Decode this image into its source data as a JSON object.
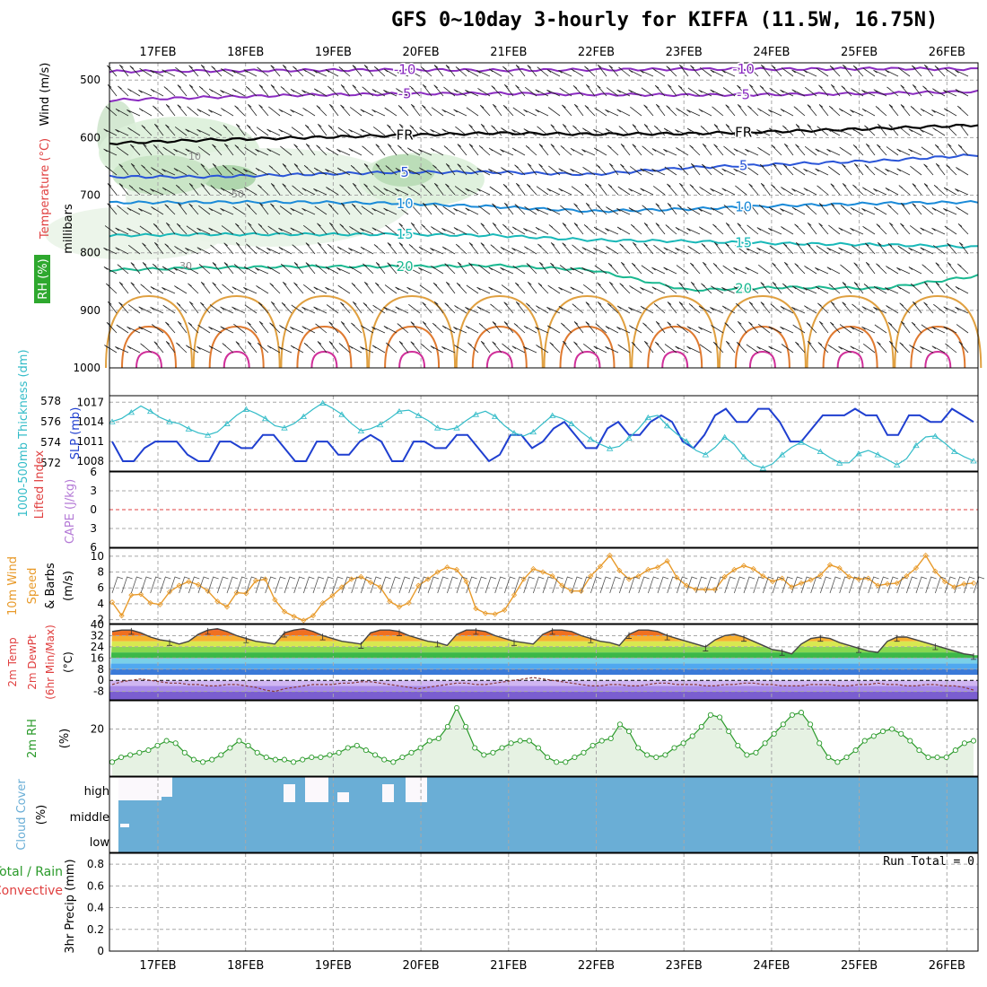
{
  "title": "GFS 0~10day 3-hourly for KIFFA (11.5W, 16.75N)",
  "date_labels": [
    "17FEB",
    "18FEB",
    "19FEB",
    "20FEB",
    "21FEB",
    "22FEB",
    "23FEB",
    "24FEB",
    "25FEB",
    "26FEB"
  ],
  "colors": {
    "grid": "#a8a8a8",
    "slp": "#1f3fd0",
    "thickness": "#33bcc8",
    "wind_speed": "#e89a2a",
    "rh": "#2a9a2a",
    "rh_fill": "#e6f2e3",
    "cloud": "#6aaed6",
    "lifted_index": "#e04040",
    "cape": "#b47ad6",
    "precip_total": "#2a9a2a",
    "precip_conv": "#e04040"
  },
  "chart_data": [
    {
      "panel": "upper_air",
      "type": "line",
      "ylabel": [
        "Wind (m/s)",
        "Temperature (°C)",
        "RH (%)",
        "millibars"
      ],
      "yticks": [
        500,
        600,
        700,
        800,
        900,
        1000
      ],
      "ylim": [
        470,
        1000
      ],
      "isotherms": [
        {
          "value": -10,
          "label": "-10",
          "p": [
            485,
            484,
            483,
            482,
            483,
            482,
            481,
            481,
            480,
            481
          ]
        },
        {
          "value": -5,
          "label": "-5",
          "p": [
            535,
            530,
            526,
            524,
            523,
            525,
            526,
            525,
            523,
            520
          ]
        },
        {
          "value": 0,
          "label": "FR",
          "p": [
            610,
            604,
            600,
            596,
            592,
            594,
            593,
            589,
            584,
            578
          ]
        },
        {
          "value": 5,
          "label": "5",
          "p": [
            668,
            668,
            664,
            660,
            660,
            664,
            652,
            646,
            640,
            630
          ]
        },
        {
          "value": 10,
          "label": "10",
          "p": [
            713,
            712,
            712,
            714,
            720,
            728,
            724,
            718,
            714,
            712
          ]
        },
        {
          "value": 15,
          "label": "15",
          "p": [
            770,
            768,
            768,
            768,
            770,
            778,
            780,
            784,
            786,
            790
          ]
        },
        {
          "value": 20,
          "label": "20",
          "p": [
            830,
            826,
            824,
            824,
            822,
            830,
            865,
            860,
            862,
            840
          ]
        }
      ],
      "contour_labels": [
        "10",
        "30",
        "50"
      ]
    },
    {
      "panel": "slp_thickness",
      "type": "line",
      "ylabel_left": "1000-500mb Thickness (dm)",
      "ylabel_right": "SLP (mb)",
      "yticks_left": [
        572,
        574,
        576,
        578
      ],
      "yticks_right": [
        1008,
        1011,
        1014,
        1017
      ],
      "ylim_left": [
        571.2,
        578.5
      ],
      "ylim_right": [
        1006.5,
        1018
      ],
      "series": [
        {
          "name": "SLP (mb)",
          "axis": "right",
          "values": [
            1011,
            1008,
            1008,
            1010,
            1011,
            1011,
            1011,
            1009,
            1008,
            1008,
            1011,
            1011,
            1010,
            1010,
            1012,
            1012,
            1010,
            1008,
            1008,
            1011,
            1011,
            1009,
            1009,
            1011,
            1012,
            1011,
            1008,
            1008,
            1011,
            1011,
            1010,
            1010,
            1012,
            1012,
            1010,
            1008,
            1009,
            1012,
            1012,
            1010,
            1011,
            1013,
            1014,
            1012,
            1010,
            1010,
            1013,
            1014,
            1012,
            1012,
            1014,
            1015,
            1014,
            1011,
            1010,
            1012,
            1015,
            1016,
            1014,
            1014,
            1016,
            1016,
            1014,
            1011,
            1011,
            1013,
            1015,
            1015,
            1015,
            1016,
            1015,
            1015,
            1012,
            1012,
            1015,
            1015,
            1014,
            1014,
            1016,
            1015,
            1014
          ]
        },
        {
          "name": "1000-500mb Thickness (dm)",
          "axis": "left",
          "values": [
            576,
            576.3,
            576.9,
            577.5,
            577,
            576.4,
            576,
            575.8,
            575.3,
            574.9,
            574.7,
            575,
            575.8,
            576.6,
            577.2,
            576.8,
            576.3,
            575.6,
            575.4,
            575.8,
            576.5,
            577.2,
            577.8,
            577.3,
            576.7,
            575.8,
            575.1,
            575.3,
            575.7,
            576.3,
            577,
            577.1,
            576.6,
            576.1,
            575.4,
            575.2,
            575.4,
            576.1,
            576.7,
            577,
            576.5,
            575.6,
            574.9,
            574.6,
            575,
            575.8,
            576.6,
            576.3,
            575.8,
            575,
            574.3,
            573.8,
            573.4,
            573.6,
            574.4,
            575.3,
            576.4,
            576.6,
            575.6,
            574.8,
            574.1,
            573.2,
            572.8,
            573.5,
            574.5,
            573.8,
            572.6,
            571.8,
            571.5,
            571.9,
            572.8,
            573.5,
            574,
            573.5,
            573.1,
            572.5,
            572,
            572,
            572.9,
            573.2,
            572.8,
            572.3,
            571.8,
            572.4,
            573.7,
            574.5,
            574.6,
            573.9,
            573.1,
            572.6,
            572.2
          ]
        }
      ]
    },
    {
      "panel": "instability",
      "type": "line",
      "ylabel": [
        "Lifted Index",
        "CAPE (J/kg)"
      ],
      "yticks": [
        -6,
        -3,
        0,
        3,
        6
      ],
      "ylim": [
        -6,
        6
      ],
      "series": [
        {
          "name": "Lifted Index",
          "values": []
        },
        {
          "name": "CAPE (J/kg)",
          "values": []
        }
      ]
    },
    {
      "panel": "wind10m",
      "type": "line",
      "ylabel": [
        "10m Wind",
        "Speed",
        "& Barbs",
        "(m/s)"
      ],
      "yticks": [
        2,
        4,
        6,
        8,
        10
      ],
      "ylim": [
        1.5,
        11
      ],
      "series": [
        {
          "name": "Speed",
          "values": [
            4.2,
            2.5,
            5.1,
            5.2,
            4.1,
            3.9,
            5.5,
            6.3,
            6.8,
            6.4,
            5.6,
            4.3,
            3.6,
            5.4,
            5.3,
            6.9,
            7.1,
            4.5,
            3.0,
            2.4,
            1.9,
            2.5,
            4.1,
            5.0,
            6.1,
            7.1,
            7.4,
            6.7,
            6.1,
            4.3,
            3.6,
            4.1,
            6.3,
            7.1,
            8.0,
            8.6,
            8.3,
            6.8,
            3.4,
            2.8,
            2.7,
            3.2,
            5.1,
            7.1,
            8.4,
            8.0,
            7.5,
            6.3,
            5.6,
            5.6,
            7.5,
            8.7,
            10.1,
            8.2,
            7.1,
            7.5,
            8.3,
            8.6,
            9.4,
            7.3,
            6.3,
            5.8,
            5.8,
            5.8,
            7.4,
            8.3,
            8.8,
            8.4,
            7.5,
            6.8,
            7.2,
            6.1,
            6.6,
            7.0,
            7.6,
            8.9,
            8.5,
            7.4,
            7.1,
            7.2,
            6.3,
            6.5,
            6.6,
            7.5,
            8.5,
            10.1,
            8.1,
            6.8,
            6.1,
            6.5,
            6.6
          ]
        }
      ]
    },
    {
      "panel": "temp2m",
      "type": "area",
      "ylabel": [
        "2m Temp",
        "2m DewPt",
        "(6hr Min/Max)",
        "(°C)"
      ],
      "yticks": [
        -8,
        0,
        8,
        16,
        24,
        32,
        40
      ],
      "ylim": [
        -14,
        40
      ],
      "series": [
        {
          "name": "2m Temp",
          "values": [
            35,
            36,
            36,
            34,
            31,
            29,
            28,
            26,
            28,
            33,
            36,
            37,
            35,
            32,
            30,
            28,
            27,
            26,
            34,
            36,
            37,
            35,
            32,
            30,
            28,
            27,
            26,
            34,
            36,
            36,
            35,
            32,
            30,
            28,
            27,
            25,
            33,
            36,
            36,
            35,
            32,
            30,
            28,
            27,
            26,
            33,
            36,
            36,
            35,
            32,
            30,
            28,
            27,
            25,
            33,
            36,
            36,
            35,
            32,
            30,
            28,
            26,
            24,
            29,
            32,
            33,
            31,
            28,
            25,
            22,
            21,
            19,
            26,
            30,
            31,
            30,
            27,
            25,
            23,
            21,
            20,
            28,
            31,
            31,
            29,
            27,
            25,
            23,
            21,
            19,
            18
          ]
        },
        {
          "name": "2m DewPt",
          "values": [
            -3,
            -1,
            0,
            1,
            0,
            -1,
            -2,
            -2,
            -3,
            -3,
            -4,
            -4,
            -3,
            -3,
            -4,
            -5,
            -7,
            -8,
            -6,
            -5,
            -4,
            -3,
            -3,
            -3,
            -2,
            -2,
            -1,
            -1,
            -2,
            -3,
            -4,
            -5,
            -6,
            -5,
            -4,
            -3,
            -2,
            -2,
            -3,
            -3,
            -2,
            -1,
            0,
            1,
            2,
            1,
            0,
            -1,
            -2,
            -3,
            -4,
            -4,
            -3,
            -3,
            -4,
            -4,
            -3,
            -2,
            -2,
            -3,
            -3,
            -3,
            -4,
            -4,
            -3,
            -3,
            -2,
            -2,
            -3,
            -3,
            -4,
            -4,
            -4,
            -3,
            -3,
            -3,
            -4,
            -4,
            -3,
            -3,
            -2,
            -3,
            -3,
            -4,
            -4,
            -3,
            -3,
            -4,
            -4,
            -5,
            -7
          ]
        }
      ]
    },
    {
      "panel": "rh2m",
      "type": "area",
      "ylabel": [
        "2m RH",
        "(%)"
      ],
      "yticks": [
        20
      ],
      "ylim": [
        0,
        32
      ],
      "series": [
        {
          "name": "2m RH",
          "values": [
            6,
            8,
            9,
            10,
            11,
            13,
            15,
            14,
            10,
            7,
            6,
            7,
            9,
            12,
            15,
            13,
            10,
            8,
            7,
            7,
            6,
            7,
            8,
            8,
            9,
            10,
            12,
            13,
            11,
            9,
            7,
            6,
            8,
            10,
            12,
            15,
            16,
            21,
            29,
            21,
            12,
            9,
            10,
            12,
            14,
            15,
            15,
            12,
            8,
            6,
            6,
            8,
            10,
            13,
            15,
            16,
            22,
            19,
            12,
            9,
            8,
            9,
            12,
            14,
            17,
            21,
            26,
            25,
            19,
            13,
            9,
            10,
            14,
            18,
            22,
            26,
            27,
            22,
            14,
            8,
            6,
            8,
            11,
            15,
            17,
            19,
            20,
            18,
            15,
            11,
            8,
            8,
            8,
            11,
            14,
            15
          ]
        }
      ]
    },
    {
      "panel": "cloud",
      "type": "heatmap",
      "ylabel": [
        "Cloud Cover",
        "(%)"
      ],
      "levels": [
        "high",
        "middle",
        "low"
      ],
      "high": [
        0,
        0,
        0,
        0,
        0,
        0,
        0,
        0,
        0,
        0,
        0,
        0,
        0,
        0,
        0,
        0,
        0,
        0,
        0,
        0,
        0,
        0,
        0,
        0,
        0,
        0,
        0,
        0,
        0,
        0,
        0,
        0,
        0,
        0,
        0,
        0,
        0,
        0,
        0,
        0,
        0,
        0,
        0,
        0,
        0,
        0,
        0,
        0,
        0,
        0,
        0,
        0,
        0,
        0,
        0,
        0,
        0,
        0,
        0,
        0,
        0,
        0,
        0,
        0,
        0,
        0,
        0,
        0,
        0,
        0,
        0,
        0,
        0,
        0,
        0,
        0,
        0,
        0,
        0,
        0,
        0,
        0,
        0,
        0,
        0,
        0,
        0,
        0,
        0,
        0
      ]
    },
    {
      "panel": "precip",
      "type": "bar",
      "ylabel": [
        "3hr Precip (mm)",
        "Total / Rain",
        "Convective"
      ],
      "yticks": [
        0,
        0.2,
        0.4,
        0.6,
        0.8
      ],
      "ylim": [
        0,
        0.9
      ],
      "annotation": "Run Total = 0",
      "values": []
    }
  ]
}
